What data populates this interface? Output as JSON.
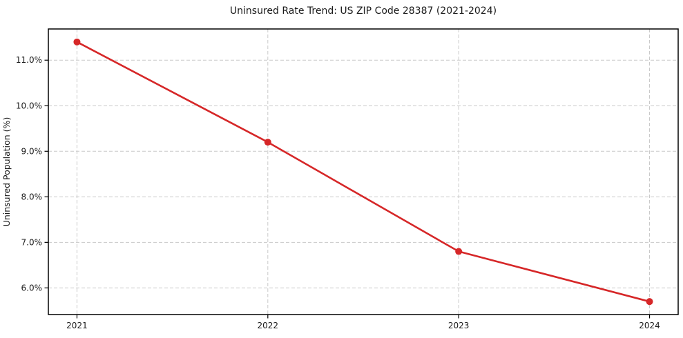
{
  "figure": {
    "background": "#ffffff",
    "border_color": "#000000",
    "grid_color": "#c8c8c8",
    "text_color": "#1a1a1a"
  },
  "chart_data": {
    "type": "line",
    "title": "Uninsured Rate Trend: US ZIP Code 28387 (2021-2024)",
    "xlabel": "",
    "ylabel": "Uninsured Population (%)",
    "x": [
      2021,
      2022,
      2023,
      2024
    ],
    "values": [
      11.4,
      9.2,
      6.8,
      5.7
    ],
    "xlim": [
      2020.85,
      2024.15
    ],
    "ylim": [
      5.415,
      11.685
    ],
    "xticks": [
      {
        "value": 2021,
        "label": "2021"
      },
      {
        "value": 2022,
        "label": "2022"
      },
      {
        "value": 2023,
        "label": "2023"
      },
      {
        "value": 2024,
        "label": "2024"
      }
    ],
    "yticks": [
      {
        "value": 6.0,
        "label": "6.0%"
      },
      {
        "value": 7.0,
        "label": "7.0%"
      },
      {
        "value": 8.0,
        "label": "8.0%"
      },
      {
        "value": 9.0,
        "label": "9.0%"
      },
      {
        "value": 10.0,
        "label": "10.0%"
      },
      {
        "value": 11.0,
        "label": "11.0%"
      }
    ],
    "grid": true,
    "grid_style": "dashed",
    "line_color": "#d62728",
    "marker": "circle",
    "marker_color": "#d62728",
    "legend_position": "none"
  }
}
